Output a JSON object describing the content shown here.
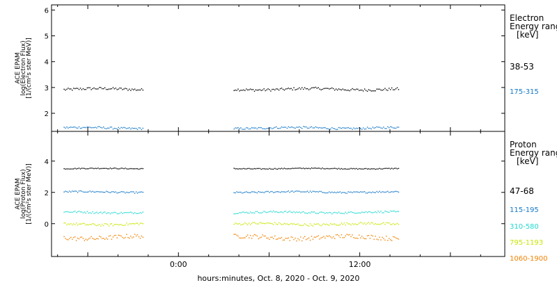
{
  "xlabel": "hours:minutes, Oct.  8, 2020 - Oct.  9, 2020",
  "x_ticks": [
    {
      "label": "0:00",
      "hour": 0
    },
    {
      "label": "12:00",
      "hour": 12
    }
  ],
  "x_range_hours": [
    -8.4,
    21.6
  ],
  "data_gap_hours": [
    -2.3,
    3.6
  ],
  "chart_data": [
    {
      "type": "scatter",
      "panel": "electron",
      "ylabel_lines": [
        "ACE EPAM",
        "log(Electron Flux)",
        "[1/(cm²s ster MeV)]"
      ],
      "ylim": [
        1.3,
        6.2
      ],
      "yticks": [
        2,
        3,
        4,
        5,
        6
      ],
      "legend_title": [
        "Electron",
        "Energy ranges",
        "[keV]"
      ],
      "series": [
        {
          "name": "38-53",
          "color": "#000000",
          "data_start_hour": -7.6,
          "data_end_hour": 14.6,
          "level": 2.95,
          "scatter": 0.05
        },
        {
          "name": "175-315",
          "color": "#1478c8",
          "data_start_hour": -7.6,
          "data_end_hour": 14.6,
          "level": 1.45,
          "scatter": 0.04
        }
      ]
    },
    {
      "type": "scatter",
      "panel": "proton",
      "ylabel_lines": [
        "ACE EPAM",
        "log(Proton Flux)",
        "[1/(cm²s ster MeV)]"
      ],
      "ylim": [
        -2.1,
        5.9
      ],
      "yticks": [
        0,
        2,
        4
      ],
      "legend_title": [
        "Proton",
        "Energy ranges",
        "[keV]"
      ],
      "series": [
        {
          "name": "47-68",
          "color": "#000000",
          "data_start_hour": -7.6,
          "data_end_hour": 14.6,
          "level": 3.55,
          "scatter": 0.03
        },
        {
          "name": "115-195",
          "color": "#1478c8",
          "data_start_hour": -7.6,
          "data_end_hour": 14.6,
          "level": 2.05,
          "scatter": 0.05
        },
        {
          "name": "310-580",
          "color": "#20d8d0",
          "data_start_hour": -7.6,
          "data_end_hour": 14.6,
          "level": 0.75,
          "scatter": 0.06
        },
        {
          "name": "795-1193",
          "color": "#c8e600",
          "data_start_hour": -7.6,
          "data_end_hour": 14.6,
          "level": 0.0,
          "scatter": 0.08
        },
        {
          "name": "1060-1900",
          "color": "#f08200",
          "data_start_hour": -7.6,
          "data_end_hour": 14.6,
          "level": -0.85,
          "scatter": 0.14
        }
      ]
    }
  ]
}
